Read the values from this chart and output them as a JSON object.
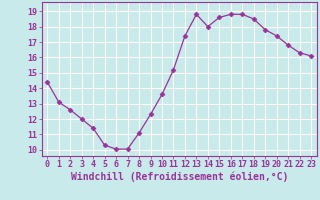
{
  "x": [
    0,
    1,
    2,
    3,
    4,
    5,
    6,
    7,
    8,
    9,
    10,
    11,
    12,
    13,
    14,
    15,
    16,
    17,
    18,
    19,
    20,
    21,
    22,
    23
  ],
  "y": [
    14.4,
    13.1,
    12.6,
    12.0,
    11.4,
    10.3,
    10.05,
    10.05,
    11.1,
    12.3,
    13.6,
    15.2,
    17.4,
    18.8,
    18.0,
    18.6,
    18.8,
    18.8,
    18.5,
    17.8,
    17.4,
    16.8,
    16.3,
    16.1
  ],
  "line_color": "#993399",
  "marker": "D",
  "marker_size": 2.5,
  "bg_color": "#c8eaea",
  "grid_color": "#ffffff",
  "xlabel": "Windchill (Refroidissement éolien,°C)",
  "ylim": [
    9.6,
    19.6
  ],
  "xlim": [
    -0.5,
    23.5
  ],
  "yticks": [
    10,
    11,
    12,
    13,
    14,
    15,
    16,
    17,
    18,
    19
  ],
  "xticks": [
    0,
    1,
    2,
    3,
    4,
    5,
    6,
    7,
    8,
    9,
    10,
    11,
    12,
    13,
    14,
    15,
    16,
    17,
    18,
    19,
    20,
    21,
    22,
    23
  ],
  "tick_label_fontsize": 6,
  "xlabel_fontsize": 7,
  "axis_label_color": "#993399",
  "tick_color": "#993399",
  "spine_color": "#993399"
}
